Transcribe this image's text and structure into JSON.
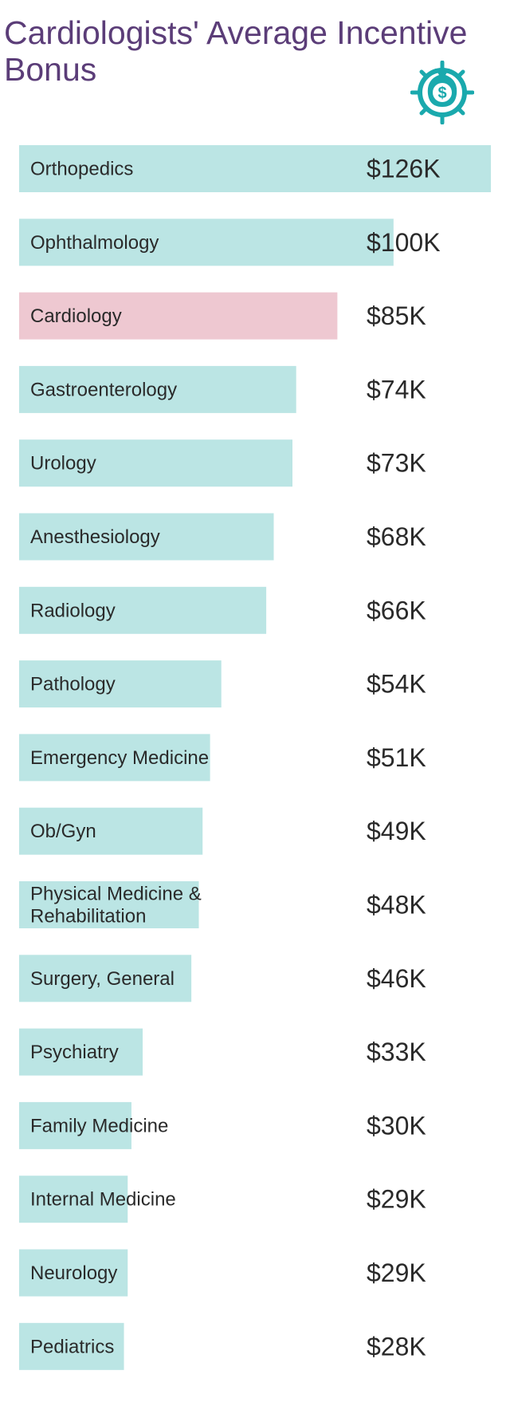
{
  "colors": {
    "title": "#5b3d78",
    "bar": "#bbe5e4",
    "highlight_bar": "#eec8d1",
    "highlight_value": "#c94d72",
    "text": "#2a2a2a",
    "icon": "#1aa9ad"
  },
  "icon": "money-bag-target-icon",
  "chart_data": {
    "type": "bar",
    "orientation": "horizontal",
    "title": "Cardiologists' Average Incentive Bonus",
    "xlabel": "",
    "ylabel": "",
    "unit": "$K",
    "grid": false,
    "xlim": [
      0,
      126
    ],
    "highlight": "Cardiology",
    "categories": [
      "Orthopedics",
      "Ophthalmology",
      "Cardiology",
      "Gastroenterology",
      "Urology",
      "Anesthesiology",
      "Radiology",
      "Pathology",
      "Emergency Medicine",
      "Ob/Gyn",
      "Physical Medicine & Rehabilitation",
      "Surgery, General",
      "Psychiatry",
      "Family Medicine",
      "Internal Medicine",
      "Neurology",
      "Pediatrics"
    ],
    "category_lines": [
      [
        "Orthopedics"
      ],
      [
        "Ophthalmology"
      ],
      [
        "Cardiology"
      ],
      [
        "Gastroenterology"
      ],
      [
        "Urology"
      ],
      [
        "Anesthesiology"
      ],
      [
        "Radiology"
      ],
      [
        "Pathology"
      ],
      [
        "Emergency Medicine"
      ],
      [
        "Ob/Gyn"
      ],
      [
        "Physical Medicine &",
        "Rehabilitation"
      ],
      [
        "Surgery, General"
      ],
      [
        "Psychiatry"
      ],
      [
        "Family Medicine"
      ],
      [
        "Internal Medicine"
      ],
      [
        "Neurology"
      ],
      [
        "Pediatrics"
      ]
    ],
    "values": [
      126,
      100,
      85,
      74,
      73,
      68,
      66,
      54,
      51,
      49,
      48,
      46,
      33,
      30,
      29,
      29,
      28
    ],
    "value_labels": [
      "$126K",
      "$100K",
      "$85K",
      "$74K",
      "$73K",
      "$68K",
      "$66K",
      "$54K",
      "$51K",
      "$49K",
      "$48K",
      "$46K",
      "$33K",
      "$30K",
      "$29K",
      "$29K",
      "$28K"
    ]
  }
}
